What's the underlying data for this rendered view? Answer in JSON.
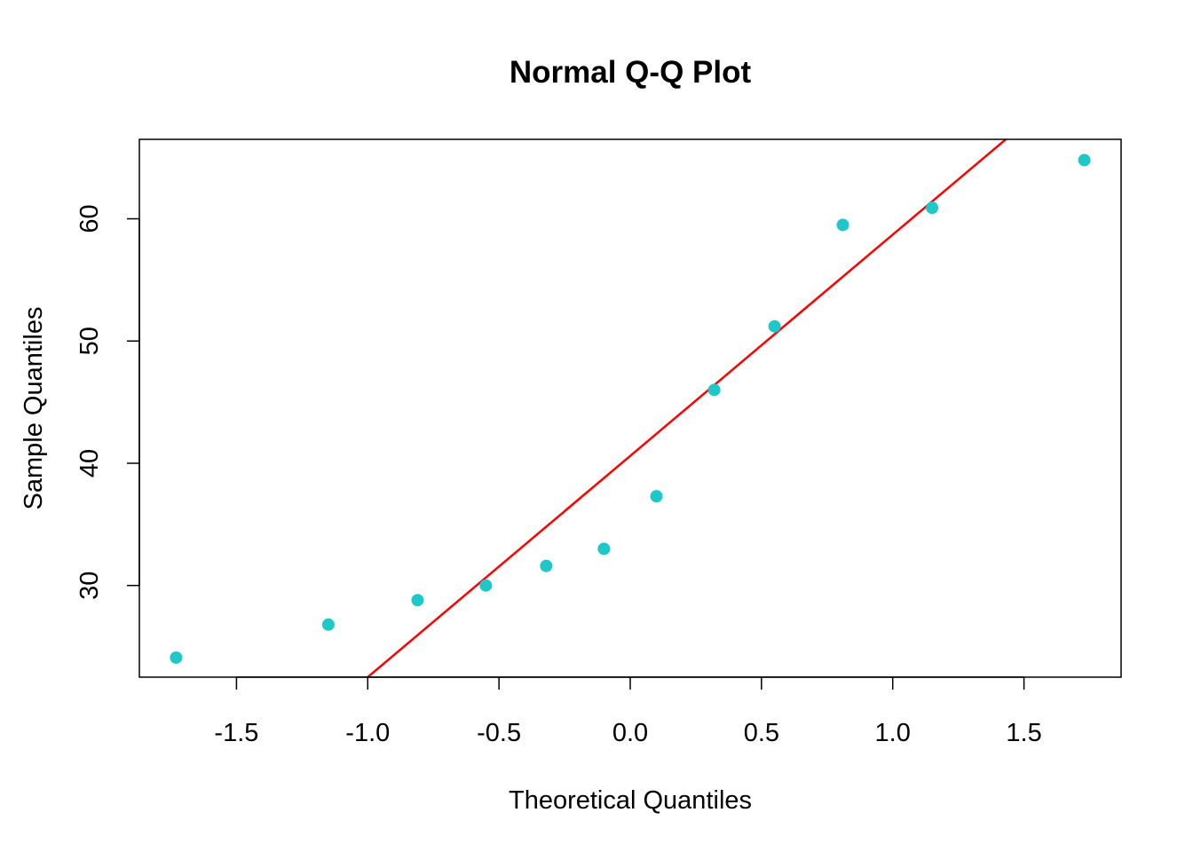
{
  "chart_data": {
    "type": "scatter",
    "title": "Normal Q-Q Plot",
    "xlabel": "Theoretical Quantiles",
    "ylabel": "Sample Quantiles",
    "xlim": [
      -1.87,
      1.87
    ],
    "ylim": [
      22.5,
      66.5
    ],
    "x_ticks": [
      {
        "value": -1.5,
        "label": "-1.5"
      },
      {
        "value": -1.0,
        "label": "-1.0"
      },
      {
        "value": -0.5,
        "label": "-0.5"
      },
      {
        "value": 0.0,
        "label": "0.0"
      },
      {
        "value": 0.5,
        "label": "0.5"
      },
      {
        "value": 1.0,
        "label": "1.0"
      },
      {
        "value": 1.5,
        "label": "1.5"
      }
    ],
    "y_ticks": [
      {
        "value": 30,
        "label": "30"
      },
      {
        "value": 40,
        "label": "40"
      },
      {
        "value": 50,
        "label": "50"
      },
      {
        "value": 60,
        "label": "60"
      }
    ],
    "points": [
      {
        "x": -1.73,
        "y": 24.1
      },
      {
        "x": -1.15,
        "y": 26.8
      },
      {
        "x": -0.81,
        "y": 28.8
      },
      {
        "x": -0.55,
        "y": 30.0
      },
      {
        "x": -0.32,
        "y": 31.6
      },
      {
        "x": -0.1,
        "y": 33.0
      },
      {
        "x": 0.1,
        "y": 37.3
      },
      {
        "x": 0.32,
        "y": 46.0
      },
      {
        "x": 0.55,
        "y": 51.2
      },
      {
        "x": 0.81,
        "y": 59.5
      },
      {
        "x": 1.15,
        "y": 60.9
      },
      {
        "x": 1.73,
        "y": 64.8
      }
    ],
    "reference_line": {
      "intercept": 40.6,
      "slope": 18.1
    },
    "grid": false,
    "point_color": "#1fc8c8",
    "line_color": "#ff0000"
  }
}
